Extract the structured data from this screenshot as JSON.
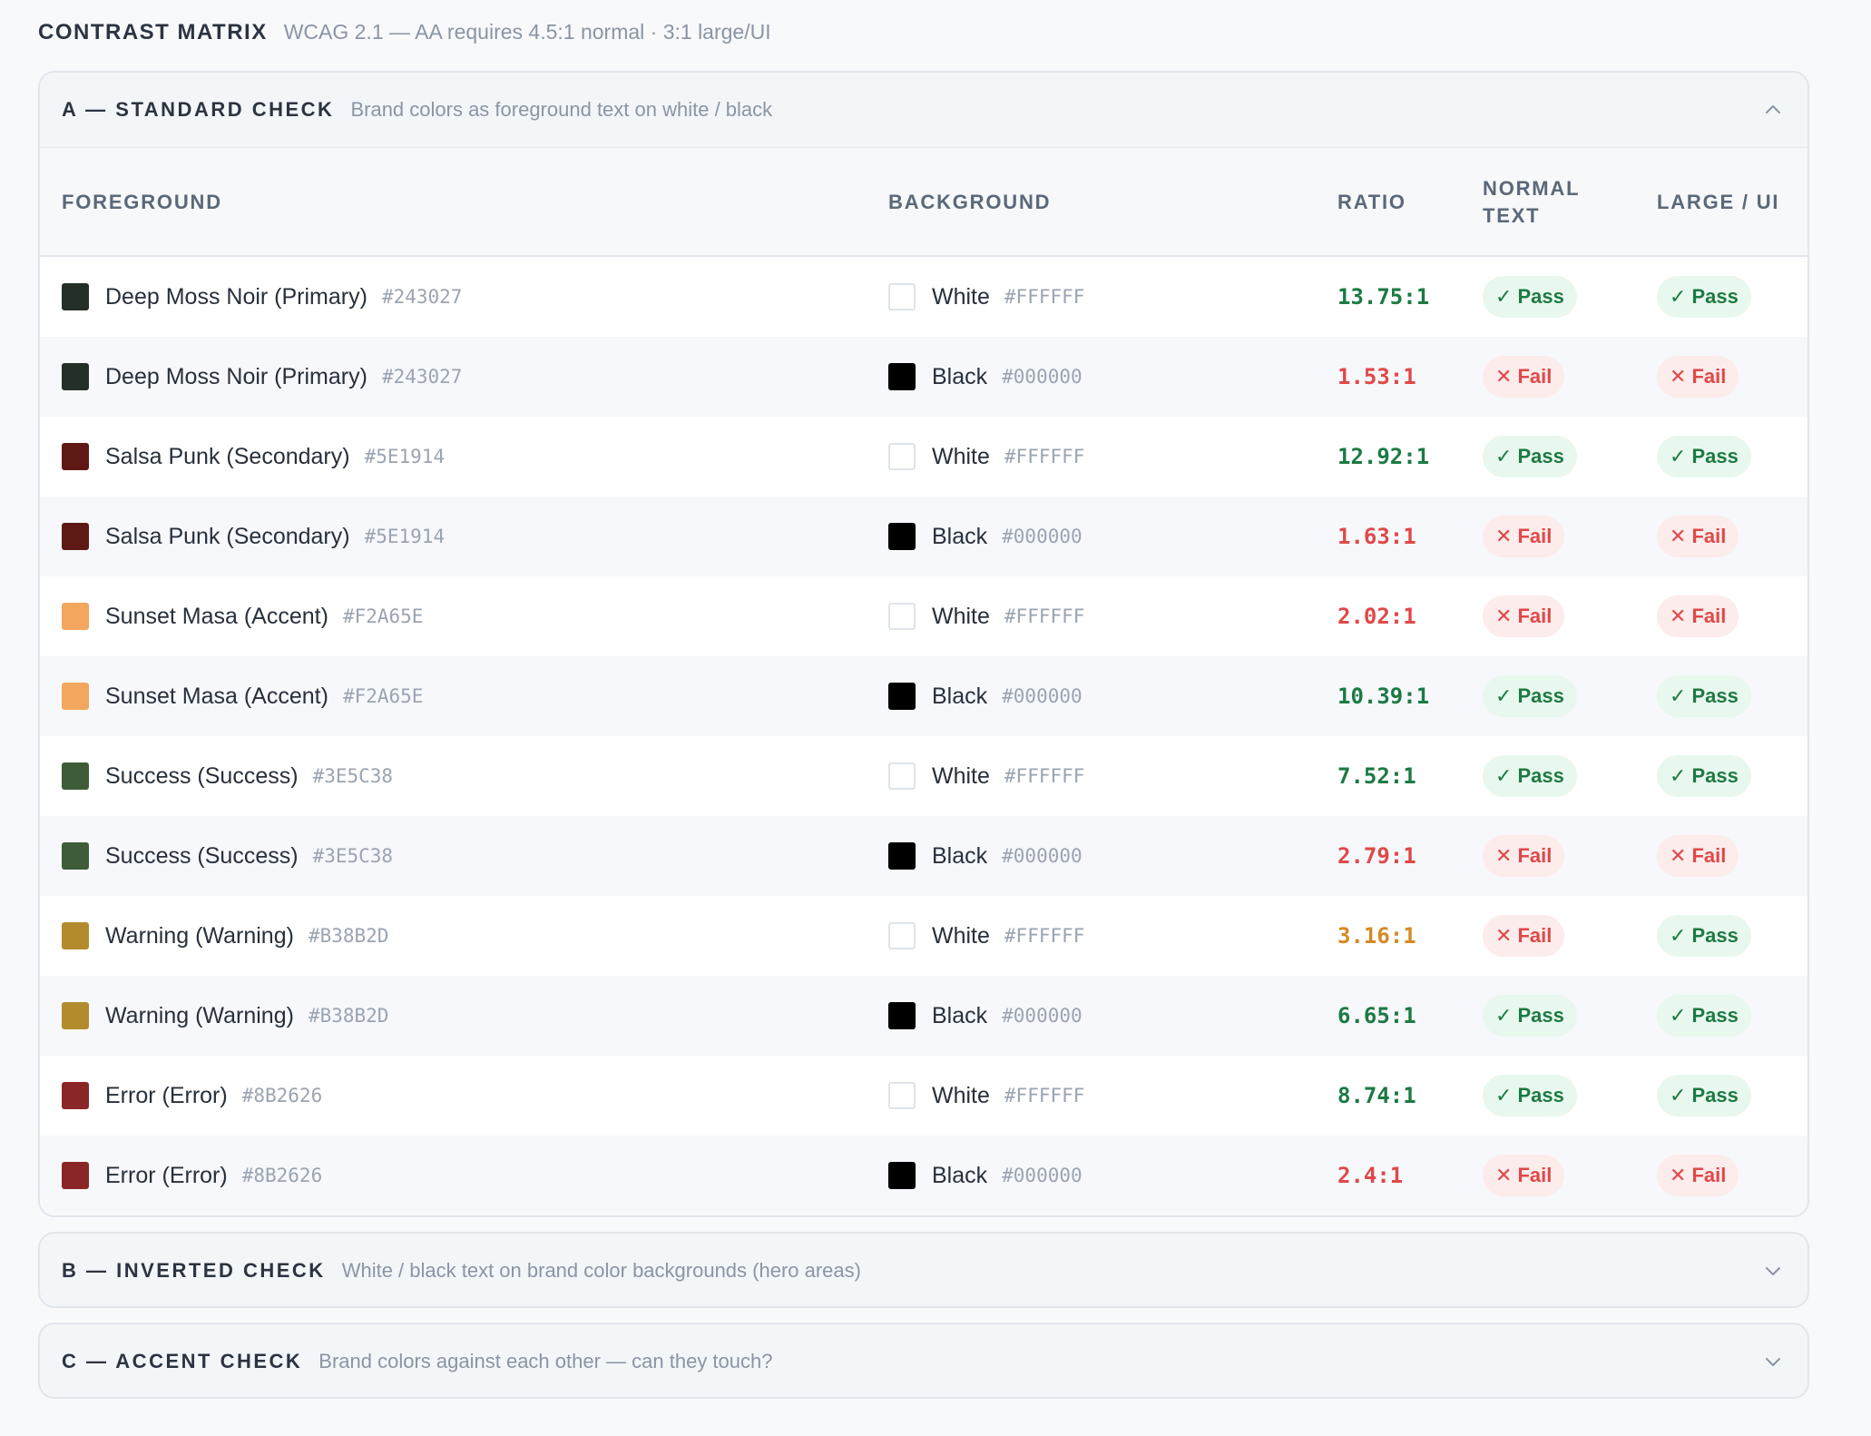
{
  "header": {
    "title": "CONTRAST MATRIX",
    "subtitle": "WCAG 2.1 — AA requires 4.5:1 normal · 3:1 large/UI"
  },
  "colors": {
    "pass_text": "#1c7a43",
    "fail_text": "#e04848",
    "warn_text": "#d48a22"
  },
  "sections": [
    {
      "title": "A — STANDARD CHECK",
      "description": "Brand colors as foreground text on white / black",
      "expanded": true,
      "toggle_icon": "chevron-up-icon"
    },
    {
      "title": "B — INVERTED CHECK",
      "description": "White / black text on brand color backgrounds (hero areas)",
      "expanded": false,
      "toggle_icon": "chevron-down-icon"
    },
    {
      "title": "C — ACCENT CHECK",
      "description": "Brand colors against each other — can they touch?",
      "expanded": false,
      "toggle_icon": "chevron-down-icon"
    }
  ],
  "table": {
    "columns": {
      "foreground": "FOREGROUND",
      "background": "BACKGROUND",
      "ratio": "RATIO",
      "normal_text_line1": "NORMAL",
      "normal_text_line2": "TEXT",
      "large_ui": "LARGE / UI"
    },
    "rows": [
      {
        "fg_name": "Deep Moss Noir (Primary)",
        "fg_hex": "#243027",
        "bg_name": "White",
        "bg_hex": "#FFFFFF",
        "ratio": "13.75:1",
        "ratio_status": "pass",
        "normal": "Pass",
        "large": "Pass"
      },
      {
        "fg_name": "Deep Moss Noir (Primary)",
        "fg_hex": "#243027",
        "bg_name": "Black",
        "bg_hex": "#000000",
        "ratio": "1.53:1",
        "ratio_status": "fail",
        "normal": "Fail",
        "large": "Fail"
      },
      {
        "fg_name": "Salsa Punk (Secondary)",
        "fg_hex": "#5E1914",
        "bg_name": "White",
        "bg_hex": "#FFFFFF",
        "ratio": "12.92:1",
        "ratio_status": "pass",
        "normal": "Pass",
        "large": "Pass"
      },
      {
        "fg_name": "Salsa Punk (Secondary)",
        "fg_hex": "#5E1914",
        "bg_name": "Black",
        "bg_hex": "#000000",
        "ratio": "1.63:1",
        "ratio_status": "fail",
        "normal": "Fail",
        "large": "Fail"
      },
      {
        "fg_name": "Sunset Masa (Accent)",
        "fg_hex": "#F2A65E",
        "bg_name": "White",
        "bg_hex": "#FFFFFF",
        "ratio": "2.02:1",
        "ratio_status": "fail",
        "normal": "Fail",
        "large": "Fail"
      },
      {
        "fg_name": "Sunset Masa (Accent)",
        "fg_hex": "#F2A65E",
        "bg_name": "Black",
        "bg_hex": "#000000",
        "ratio": "10.39:1",
        "ratio_status": "pass",
        "normal": "Pass",
        "large": "Pass"
      },
      {
        "fg_name": "Success (Success)",
        "fg_hex": "#3E5C38",
        "bg_name": "White",
        "bg_hex": "#FFFFFF",
        "ratio": "7.52:1",
        "ratio_status": "pass",
        "normal": "Pass",
        "large": "Pass"
      },
      {
        "fg_name": "Success (Success)",
        "fg_hex": "#3E5C38",
        "bg_name": "Black",
        "bg_hex": "#000000",
        "ratio": "2.79:1",
        "ratio_status": "fail",
        "normal": "Fail",
        "large": "Fail"
      },
      {
        "fg_name": "Warning (Warning)",
        "fg_hex": "#B38B2D",
        "bg_name": "White",
        "bg_hex": "#FFFFFF",
        "ratio": "3.16:1",
        "ratio_status": "warn",
        "normal": "Fail",
        "large": "Pass"
      },
      {
        "fg_name": "Warning (Warning)",
        "fg_hex": "#B38B2D",
        "bg_name": "Black",
        "bg_hex": "#000000",
        "ratio": "6.65:1",
        "ratio_status": "pass",
        "normal": "Pass",
        "large": "Pass"
      },
      {
        "fg_name": "Error (Error)",
        "fg_hex": "#8B2626",
        "bg_name": "White",
        "bg_hex": "#FFFFFF",
        "ratio": "8.74:1",
        "ratio_status": "pass",
        "normal": "Pass",
        "large": "Pass"
      },
      {
        "fg_name": "Error (Error)",
        "fg_hex": "#8B2626",
        "bg_name": "Black",
        "bg_hex": "#000000",
        "ratio": "2.4:1",
        "ratio_status": "fail",
        "normal": "Fail",
        "large": "Fail"
      }
    ]
  }
}
